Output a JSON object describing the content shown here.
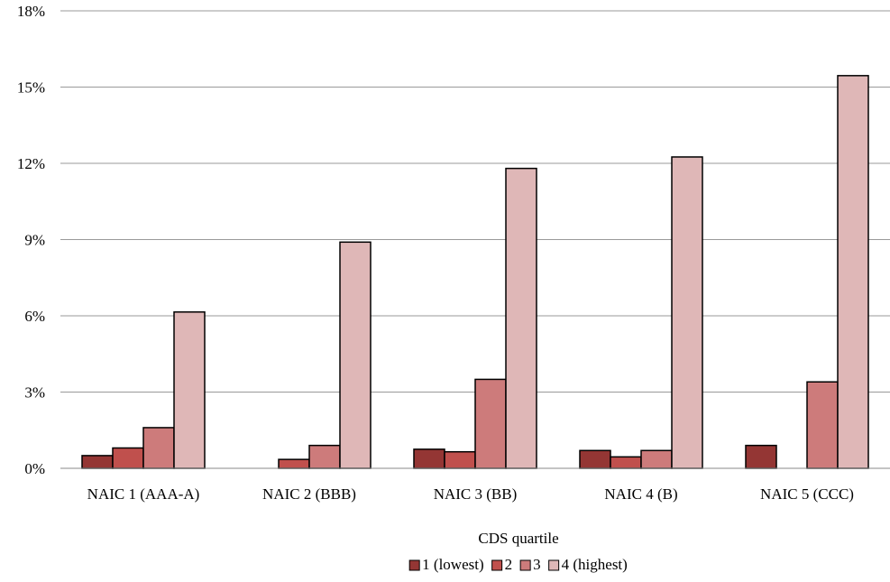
{
  "chart_data": {
    "type": "bar",
    "title": "",
    "xlabel": "",
    "ylabel": "",
    "categories": [
      "NAIC 1 (AAA-A)",
      "NAIC 2 (BBB)",
      "NAIC 3 (BB)",
      "NAIC 4 (B)",
      "NAIC 5 (CCC)"
    ],
    "series": [
      {
        "name": "1 (lowest)",
        "color": "#943634",
        "values": [
          0.5,
          0.0,
          0.75,
          0.7,
          0.9
        ]
      },
      {
        "name": "2",
        "color": "#C0504D",
        "values": [
          0.8,
          0.35,
          0.65,
          0.45,
          0.0
        ]
      },
      {
        "name": "3",
        "color": "#CD7B7B",
        "values": [
          1.6,
          0.9,
          3.5,
          0.7,
          3.4
        ]
      },
      {
        "name": "4 (highest)",
        "color": "#DFB7B7",
        "values": [
          6.15,
          8.9,
          11.8,
          12.25,
          15.45
        ]
      }
    ],
    "ylim": [
      0,
      18
    ],
    "yticks": [
      0,
      3,
      6,
      9,
      12,
      15,
      18
    ],
    "ytick_suffix": "%",
    "grid": true,
    "legend_title": "CDS quartile",
    "legend_placement": "bottom"
  }
}
